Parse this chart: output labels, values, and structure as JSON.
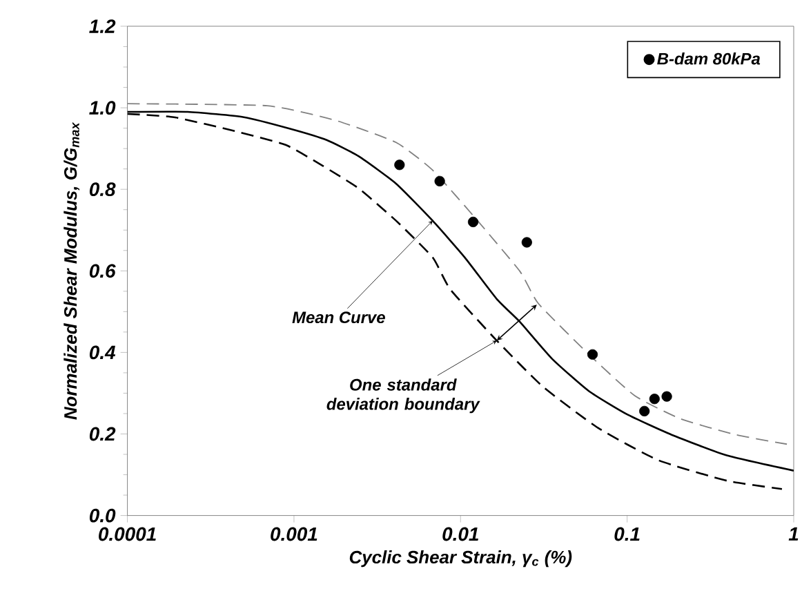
{
  "chart_data": {
    "type": "line",
    "xlabel": "Cyclic Shear Strain, γ$_{c}$ (%)",
    "ylabel": "Normalized Shear Modulus, G/G$_{max}$",
    "log": "x",
    "xlim": [
      0.0001,
      1
    ],
    "xticks": [
      0.0001,
      0.001,
      0.01,
      0.1,
      1
    ],
    "ylim": [
      0,
      1.2
    ],
    "yticks": [
      {
        "value": 0,
        "label": "0.0"
      },
      {
        "value": 0.2,
        "label": "0.2"
      },
      {
        "value": 0.4,
        "label": "0.4"
      },
      {
        "value": 0.6,
        "label": "0.6"
      },
      {
        "value": 0.8,
        "label": "0.8"
      },
      {
        "value": 1.0,
        "label": "1.0"
      },
      {
        "value": 1.2,
        "label": "1.2"
      }
    ],
    "grid": false,
    "legend": "top right",
    "series": [
      {
        "color": "#000000",
        "line_style": "solid",
        "marker": "none",
        "x": [
          0.0001,
          0.00023,
          0.0005,
          0.00094,
          0.00157,
          0.00245,
          0.0041,
          0.0068,
          0.0106,
          0.0165,
          0.0227,
          0.0355,
          0.059,
          0.1,
          0.185,
          0.4,
          1
        ],
        "values": [
          0.99,
          0.99,
          0.977,
          0.949,
          0.921,
          0.881,
          0.814,
          0.723,
          0.633,
          0.531,
          0.475,
          0.384,
          0.305,
          0.248,
          0.198,
          0.147,
          0.11
        ]
      },
      {
        "color": "#808080",
        "line_style": "dashed",
        "marker": "none",
        "x": [
          0.0001,
          0.00069,
          0.00178,
          0.0041,
          0.0068,
          0.012,
          0.0227,
          0.0293,
          0.059,
          0.111,
          0.21,
          0.45,
          0.91
        ],
        "values": [
          1.01,
          1.005,
          0.969,
          0.915,
          0.847,
          0.734,
          0.599,
          0.52,
          0.395,
          0.294,
          0.237,
          0.198,
          0.175
        ]
      },
      {
        "color": "#000000",
        "line_style": "dashed",
        "marker": "none",
        "x": [
          0.0001,
          0.00019,
          0.00044,
          0.00089,
          0.00147,
          0.00245,
          0.0041,
          0.0068,
          0.0087,
          0.0165,
          0.0312,
          0.0668,
          0.153,
          0.4,
          0.85
        ],
        "values": [
          0.985,
          0.977,
          0.943,
          0.909,
          0.859,
          0.802,
          0.723,
          0.633,
          0.554,
          0.429,
          0.316,
          0.215,
          0.136,
          0.085,
          0.065
        ]
      },
      {
        "type": "scatter",
        "name": "B-dam 80kPa",
        "color": "#000000",
        "marker": "circle",
        "x": [
          0.0043,
          0.0075,
          0.0119,
          0.025,
          0.062,
          0.127,
          0.146,
          0.173
        ],
        "values": [
          0.86,
          0.82,
          0.72,
          0.67,
          0.395,
          0.256,
          0.286,
          0.292
        ]
      }
    ],
    "annotations": [
      {
        "text": "Mean Curve",
        "x": 0.0068,
        "y": 0.723
      },
      {
        "text": "One standard deviation boundary",
        "x": 0.0165,
        "y": 0.429
      }
    ]
  }
}
